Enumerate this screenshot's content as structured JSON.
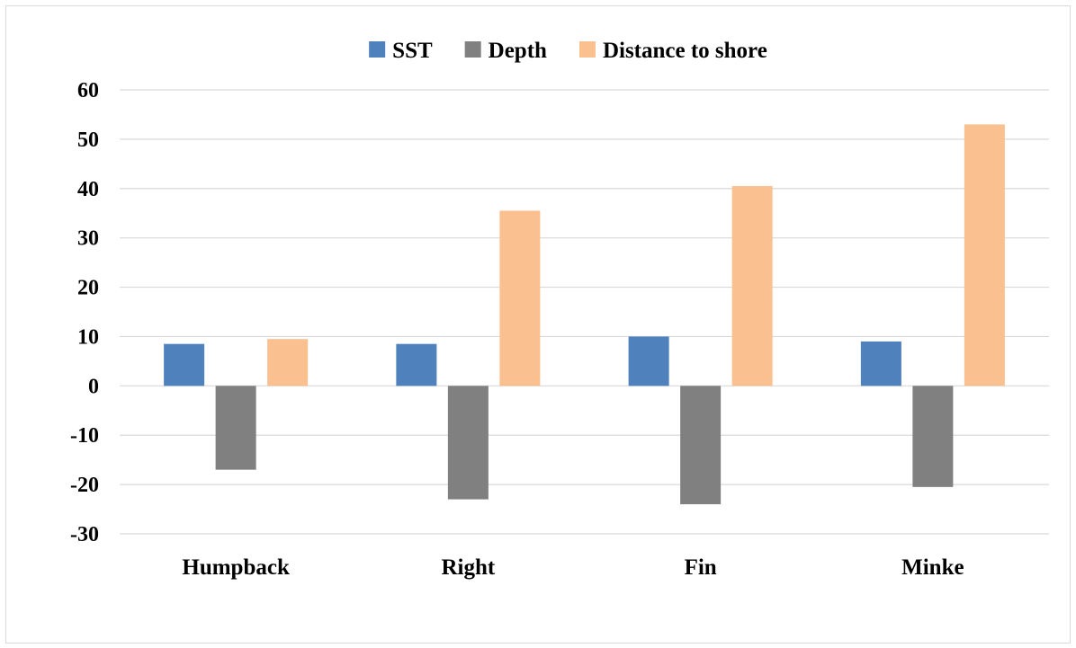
{
  "chart_data": {
    "type": "bar",
    "title": "",
    "xlabel": "",
    "ylabel": "",
    "categories": [
      "Humpback",
      "Right",
      "Fin",
      "Minke"
    ],
    "series": [
      {
        "name": "SST",
        "color": "#4f81bd",
        "values": [
          8.5,
          8.5,
          10,
          9
        ]
      },
      {
        "name": "Depth",
        "color": "#808080",
        "values": [
          -17,
          -23,
          -24,
          -20.5
        ]
      },
      {
        "name": "Distance to shore",
        "color": "#fac090",
        "values": [
          9.5,
          35.5,
          40.5,
          53
        ]
      }
    ],
    "ylim": [
      -30,
      60
    ],
    "yticks": [
      "60",
      "50",
      "40",
      "30",
      "20",
      "10",
      "0",
      "-10",
      "-20",
      "-30"
    ],
    "grid": true,
    "gridline_color": "#d9d9d9",
    "legend_position": "top-center"
  }
}
